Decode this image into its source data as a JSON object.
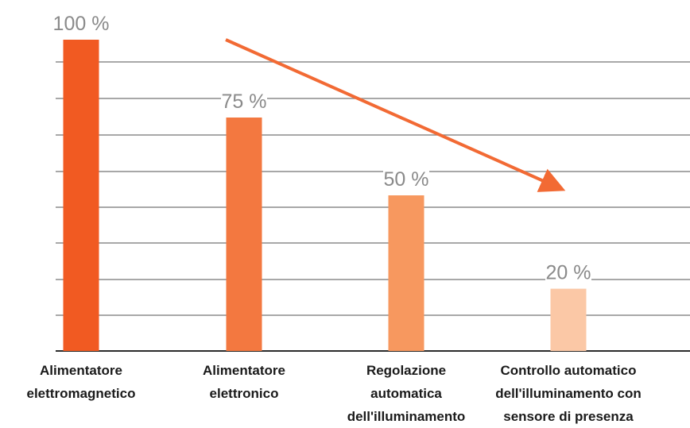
{
  "chart_data": {
    "type": "bar",
    "categories": [
      [
        "Alimentatore",
        "elettromagnetico"
      ],
      [
        "Alimentatore",
        "elettronico"
      ],
      [
        "Regolazione",
        "automatica",
        "dell'illuminamento"
      ],
      [
        "Controllo automatico",
        "dell'illuminamento con",
        "sensore di presenza"
      ]
    ],
    "values": [
      100,
      75,
      50,
      20
    ],
    "value_labels": [
      "100 %",
      "75 %",
      "50 %",
      "20 %"
    ],
    "ylim": [
      0,
      100
    ],
    "grid": true,
    "trend_arrow": true
  },
  "colors": {
    "bars": [
      "#f15a22",
      "#f37840",
      "#f7985f",
      "#fbc8a6"
    ],
    "arrow": "#f26a34",
    "grid": "#8c8c8c",
    "baseline": "#2b2b2b"
  }
}
